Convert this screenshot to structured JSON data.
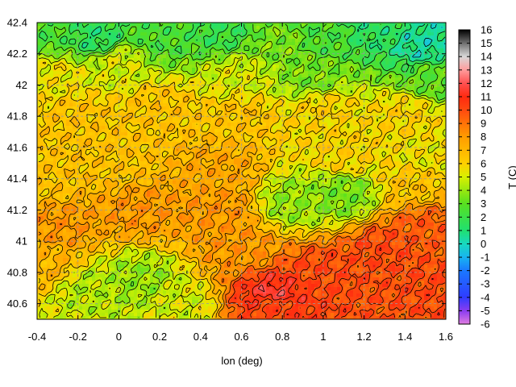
{
  "chart_data": {
    "type": "heatmap",
    "title": "",
    "xlabel": "lon (deg)",
    "ylabel": "",
    "colorbar_label": "T (C)",
    "xlim": [
      -0.4,
      1.6
    ],
    "ylim": [
      40.5,
      42.4
    ],
    "x_ticks": [
      "-0.4",
      "-0.2",
      "0",
      "0.2",
      "0.4",
      "0.6",
      "0.8",
      "1",
      "1.2",
      "1.4",
      "1.6"
    ],
    "y_ticks": [
      "40.6",
      "40.8",
      "41",
      "41.2",
      "41.4",
      "41.6",
      "41.8",
      "42",
      "42.2",
      "42.4"
    ],
    "colorbar_range": [
      -6,
      16
    ],
    "colorbar_ticks": [
      "-6",
      "-5",
      "-4",
      "-3",
      "-2",
      "-1",
      "0",
      "1",
      "2",
      "3",
      "4",
      "5",
      "6",
      "7",
      "8",
      "9",
      "10",
      "11",
      "12",
      "13",
      "14",
      "15",
      "16"
    ],
    "grid": true,
    "contour_lines": true,
    "colormap": [
      {
        "t": -6,
        "color": "#e07ce0"
      },
      {
        "t": -5,
        "color": "#8a3cf0"
      },
      {
        "t": -4,
        "color": "#2f3cff"
      },
      {
        "t": -2,
        "color": "#1a78ff"
      },
      {
        "t": -1,
        "color": "#18b4f0"
      },
      {
        "t": 0,
        "color": "#18d8c0"
      },
      {
        "t": 1,
        "color": "#20e070"
      },
      {
        "t": 3,
        "color": "#58e020"
      },
      {
        "t": 5,
        "color": "#d8f000"
      },
      {
        "t": 6,
        "color": "#ffd000"
      },
      {
        "t": 8,
        "color": "#ff9c00"
      },
      {
        "t": 10,
        "color": "#ff4a10"
      },
      {
        "t": 11,
        "color": "#ff2a10"
      },
      {
        "t": 12,
        "color": "#ff5050"
      },
      {
        "t": 13,
        "color": "#ff9c9c"
      },
      {
        "t": 14,
        "color": "#d8d8d8"
      },
      {
        "t": 15,
        "color": "#707070"
      },
      {
        "t": 16,
        "color": "#000000"
      }
    ],
    "field_points": [
      {
        "lon": -0.35,
        "lat": 42.35,
        "t": 2.5
      },
      {
        "lon": -0.1,
        "lat": 42.3,
        "t": 1.5
      },
      {
        "lon": 0.2,
        "lat": 42.3,
        "t": 2.5
      },
      {
        "lon": 0.5,
        "lat": 42.35,
        "t": 2.0
      },
      {
        "lon": 0.8,
        "lat": 42.25,
        "t": 3.5
      },
      {
        "lon": 1.0,
        "lat": 42.3,
        "t": 2.5
      },
      {
        "lon": 1.25,
        "lat": 42.35,
        "t": 1.5
      },
      {
        "lon": 1.5,
        "lat": 42.25,
        "t": 0.5
      },
      {
        "lon": 1.55,
        "lat": 42.05,
        "t": 3.0
      },
      {
        "lon": 0.95,
        "lat": 42.05,
        "t": 3.5
      },
      {
        "lon": 0.6,
        "lat": 42.05,
        "t": 5.0
      },
      {
        "lon": 0.0,
        "lat": 42.15,
        "t": 5.0
      },
      {
        "lon": -0.3,
        "lat": 42.05,
        "t": 5.5
      },
      {
        "lon": -0.2,
        "lat": 41.8,
        "t": 6.5
      },
      {
        "lon": 0.2,
        "lat": 41.85,
        "t": 6.5
      },
      {
        "lon": 0.6,
        "lat": 41.8,
        "t": 6.5
      },
      {
        "lon": 1.0,
        "lat": 41.85,
        "t": 6.0
      },
      {
        "lon": 1.4,
        "lat": 41.8,
        "t": 6.0
      },
      {
        "lon": 1.5,
        "lat": 41.55,
        "t": 5.5
      },
      {
        "lon": 1.1,
        "lat": 41.55,
        "t": 6.0
      },
      {
        "lon": 0.5,
        "lat": 41.45,
        "t": 7.5
      },
      {
        "lon": 0.0,
        "lat": 41.5,
        "t": 6.5
      },
      {
        "lon": -0.35,
        "lat": 41.4,
        "t": 6.5
      },
      {
        "lon": -0.3,
        "lat": 41.1,
        "t": 8.0
      },
      {
        "lon": 0.1,
        "lat": 41.2,
        "t": 8.0
      },
      {
        "lon": 0.5,
        "lat": 41.2,
        "t": 8.0
      },
      {
        "lon": 0.85,
        "lat": 41.25,
        "t": 4.0
      },
      {
        "lon": 1.1,
        "lat": 41.3,
        "t": 3.5
      },
      {
        "lon": 1.45,
        "lat": 41.35,
        "t": 6.5
      },
      {
        "lon": -0.35,
        "lat": 40.85,
        "t": 7.0
      },
      {
        "lon": -0.15,
        "lat": 40.7,
        "t": 4.5
      },
      {
        "lon": 0.1,
        "lat": 40.75,
        "t": 4.0
      },
      {
        "lon": 0.3,
        "lat": 40.6,
        "t": 5.0
      },
      {
        "lon": 0.6,
        "lat": 40.95,
        "t": 8.0
      },
      {
        "lon": 0.75,
        "lat": 40.6,
        "t": 10.0
      },
      {
        "lon": 1.0,
        "lat": 40.8,
        "t": 10.0
      },
      {
        "lon": 1.3,
        "lat": 40.95,
        "t": 10.0
      },
      {
        "lon": 1.55,
        "lat": 40.7,
        "t": 10.0
      },
      {
        "lon": 1.5,
        "lat": 41.1,
        "t": 9.5
      },
      {
        "lon": 0.75,
        "lat": 40.65,
        "t": 11.5
      }
    ]
  }
}
